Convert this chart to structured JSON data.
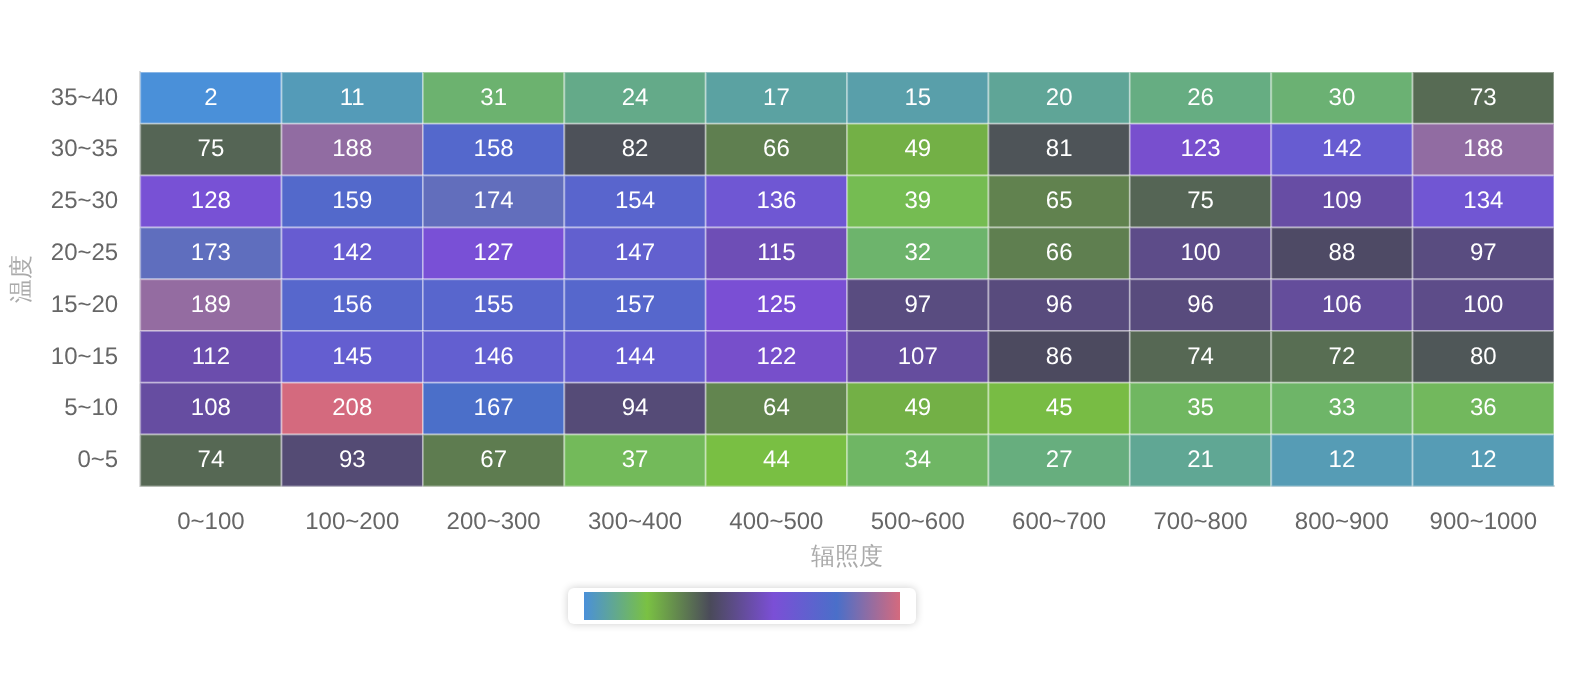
{
  "chart_data": {
    "type": "heatmap",
    "xlabel": "辐照度",
    "ylabel": "温度",
    "categories": [
      "0~100",
      "100~200",
      "200~300",
      "300~400",
      "400~500",
      "500~600",
      "600~700",
      "700~800",
      "800~900",
      "900~1000"
    ],
    "y_categories": [
      "35~40",
      "30~35",
      "25~30",
      "20~25",
      "15~20",
      "10~15",
      "5~10",
      "0~5"
    ],
    "cells": [
      [
        2,
        11,
        31,
        24,
        17,
        15,
        20,
        26,
        30,
        73
      ],
      [
        75,
        188,
        158,
        82,
        66,
        49,
        81,
        123,
        142,
        188
      ],
      [
        128,
        159,
        174,
        154,
        136,
        39,
        65,
        75,
        109,
        134
      ],
      [
        173,
        142,
        127,
        147,
        115,
        32,
        66,
        100,
        88,
        97
      ],
      [
        189,
        156,
        155,
        157,
        125,
        97,
        96,
        96,
        106,
        100
      ],
      [
        112,
        145,
        146,
        144,
        122,
        107,
        86,
        74,
        72,
        80
      ],
      [
        108,
        208,
        167,
        94,
        64,
        49,
        45,
        35,
        33,
        36
      ],
      [
        74,
        93,
        67,
        37,
        44,
        34,
        27,
        21,
        12,
        12
      ]
    ],
    "data_labels": true
  }
}
